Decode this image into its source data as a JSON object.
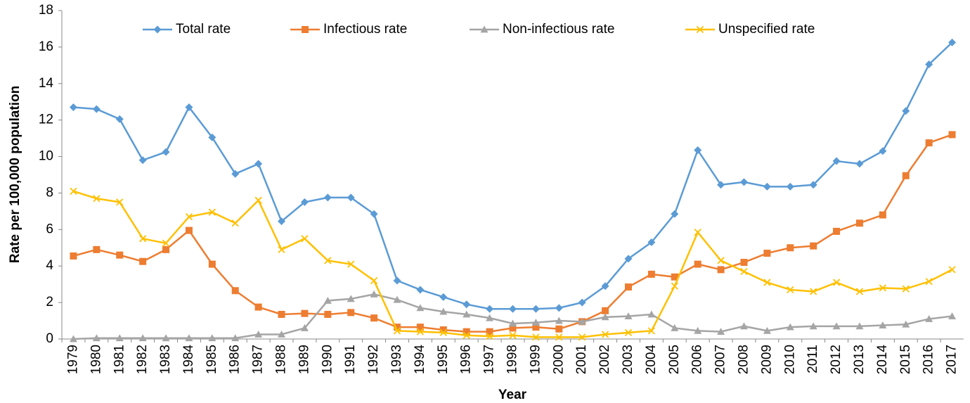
{
  "chart_data": {
    "type": "line",
    "xlabel": "Year",
    "ylabel": "Rate per 100,000 population",
    "categories": [
      "1979",
      "1980",
      "1981",
      "1982",
      "1983",
      "1984",
      "1985",
      "1986",
      "1987",
      "1988",
      "1989",
      "1990",
      "1991",
      "1992",
      "1993",
      "1994",
      "1995",
      "1996",
      "1997",
      "1998",
      "1999",
      "2000",
      "2001",
      "2002",
      "2003",
      "2004",
      "2005",
      "2006",
      "2007",
      "2008",
      "2009",
      "2010",
      "2011",
      "2012",
      "2013",
      "2014",
      "2015",
      "2016",
      "2017"
    ],
    "series": [
      {
        "name": "Total rate",
        "color": "#5b9bd5",
        "marker": "diamond",
        "values": [
          12.7,
          12.6,
          12.05,
          9.8,
          10.25,
          12.7,
          11.05,
          9.05,
          9.6,
          6.45,
          7.5,
          7.75,
          7.75,
          6.85,
          3.2,
          2.7,
          2.3,
          1.9,
          1.65,
          1.65,
          1.65,
          1.7,
          2.0,
          2.9,
          4.4,
          5.3,
          6.85,
          10.35,
          8.45,
          8.6,
          8.35,
          8.35,
          8.45,
          9.75,
          9.6,
          10.3,
          12.5,
          15.05,
          16.25
        ]
      },
      {
        "name": "Infectious rate",
        "color": "#ed7d31",
        "marker": "square",
        "values": [
          4.55,
          4.9,
          4.6,
          4.25,
          4.9,
          5.95,
          4.1,
          2.65,
          1.75,
          1.35,
          1.4,
          1.35,
          1.45,
          1.15,
          0.65,
          0.65,
          0.5,
          0.4,
          0.4,
          0.6,
          0.65,
          0.55,
          0.95,
          1.55,
          2.85,
          3.55,
          3.4,
          4.1,
          3.8,
          4.2,
          4.7,
          5.0,
          5.1,
          5.9,
          6.35,
          6.8,
          8.95,
          10.75,
          11.2
        ]
      },
      {
        "name": "Non-infectious rate",
        "color": "#a5a5a5",
        "marker": "triangle",
        "values": [
          0,
          0.05,
          0.05,
          0.05,
          0.05,
          0.05,
          0.05,
          0.05,
          0.25,
          0.25,
          0.6,
          2.1,
          2.2,
          2.45,
          2.15,
          1.7,
          1.5,
          1.35,
          1.15,
          0.85,
          0.9,
          1.0,
          0.95,
          1.2,
          1.25,
          1.35,
          0.6,
          0.45,
          0.4,
          0.7,
          0.45,
          0.65,
          0.7,
          0.7,
          0.7,
          0.75,
          0.8,
          1.1,
          1.25
        ]
      },
      {
        "name": "Unspecified rate",
        "color": "#ffc000",
        "marker": "x",
        "values": [
          8.1,
          7.7,
          7.5,
          5.5,
          5.25,
          6.7,
          6.95,
          6.35,
          7.6,
          4.9,
          5.5,
          4.3,
          4.1,
          3.2,
          0.45,
          0.4,
          0.35,
          0.2,
          0.15,
          0.2,
          0.1,
          0.1,
          0.1,
          0.25,
          0.35,
          0.45,
          2.9,
          5.85,
          4.3,
          3.7,
          3.1,
          2.7,
          2.6,
          3.1,
          2.6,
          2.8,
          2.75,
          3.15,
          3.8
        ]
      }
    ],
    "ylim": [
      0,
      18
    ],
    "yticks": [
      0,
      2,
      4,
      6,
      8,
      10,
      12,
      14,
      16,
      18
    ],
    "grid": false,
    "legend": "top"
  }
}
